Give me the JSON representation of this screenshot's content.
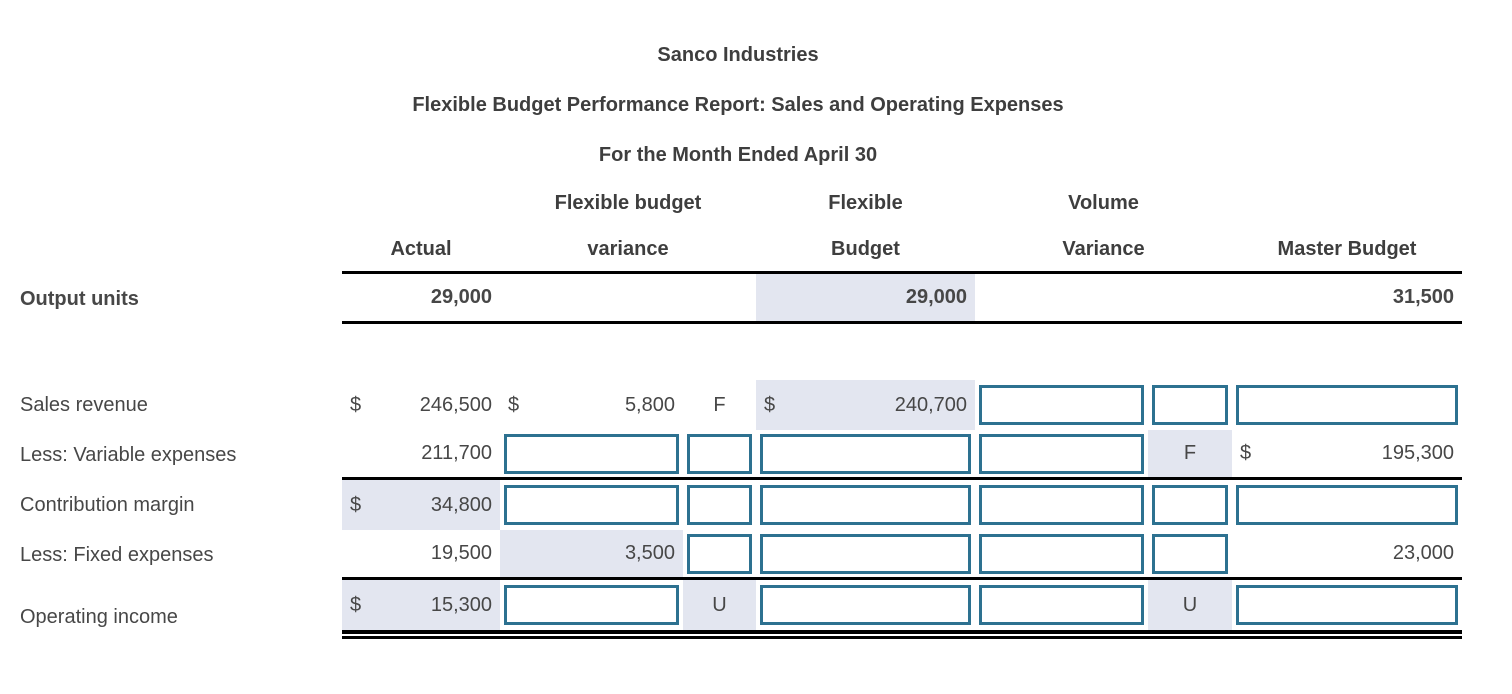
{
  "title": {
    "company": "Sanco Industries",
    "report": "Flexible Budget Performance Report: Sales and Operating Expenses",
    "period": "For the Month Ended April 30"
  },
  "headers": {
    "actual": "Actual",
    "flexible_budget_variance_line1": "Flexible budget",
    "flexible_budget_variance_line2": "variance",
    "flexible_budget_line1": "Flexible",
    "flexible_budget_line2": "Budget",
    "volume_variance_line1": "Volume",
    "volume_variance_line2": "Variance",
    "master_budget": "Master Budget"
  },
  "rows": {
    "output_units": {
      "label": "Output units",
      "actual": "29,000",
      "flexible_budget": "29,000",
      "master_budget": "31,500"
    },
    "sales_revenue": {
      "label": "Sales revenue",
      "actual_currency": "$",
      "actual": "246,500",
      "variance_currency": "$",
      "flexible_budget_variance": "5,800",
      "variance_direction": "F",
      "flexible_budget_currency": "$",
      "flexible_budget": "240,700"
    },
    "variable_expenses": {
      "label": "Less: Variable expenses",
      "actual": "211,700",
      "volume_variance_direction": "F",
      "master_budget_currency": "$",
      "master_budget": "195,300"
    },
    "contribution_margin": {
      "label": "Contribution margin",
      "actual_currency": "$",
      "actual": "34,800"
    },
    "fixed_expenses": {
      "label": "Less: Fixed expenses",
      "actual": "19,500",
      "flexible_budget_variance": "3,500",
      "master_budget": "23,000"
    },
    "operating_income": {
      "label": "Operating income",
      "actual_currency": "$",
      "actual": "15,300",
      "variance_direction": "U",
      "volume_variance_direction": "U"
    }
  },
  "colors": {
    "highlight": "#e3e6f0",
    "input_border": "#2d7190",
    "text": "#474747",
    "rule": "#000000"
  }
}
